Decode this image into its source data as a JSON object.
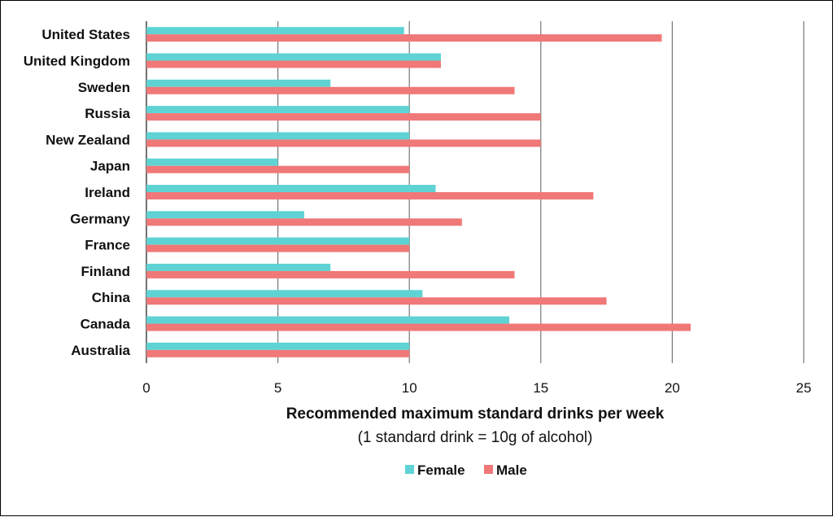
{
  "chart_data": {
    "type": "bar",
    "orientation": "horizontal",
    "categories": [
      "United States",
      "United Kingdom",
      "Sweden",
      "Russia",
      "New Zealand",
      "Japan",
      "Ireland",
      "Germany",
      "France",
      "Finland",
      "China",
      "Canada",
      "Australia"
    ],
    "series": [
      {
        "name": "Female",
        "color": "#5fd3d3",
        "values": [
          9.8,
          11.2,
          7,
          10,
          10,
          5,
          11,
          6,
          10,
          7,
          10.5,
          13.8,
          10
        ]
      },
      {
        "name": "Male",
        "color": "#f07878",
        "values": [
          19.6,
          11.2,
          14,
          15,
          15,
          10,
          17,
          12,
          10,
          14,
          17.5,
          20.7,
          10
        ]
      }
    ],
    "xlim": [
      0,
      25
    ],
    "xticks": [
      "0",
      "5",
      "10",
      "15",
      "20",
      "25"
    ],
    "xlabel": "Recommended maximum standard drinks per week",
    "xlabel_sub": "(1 standard drink = 10g of alcohol)",
    "grid": true,
    "legend": "bottom"
  }
}
